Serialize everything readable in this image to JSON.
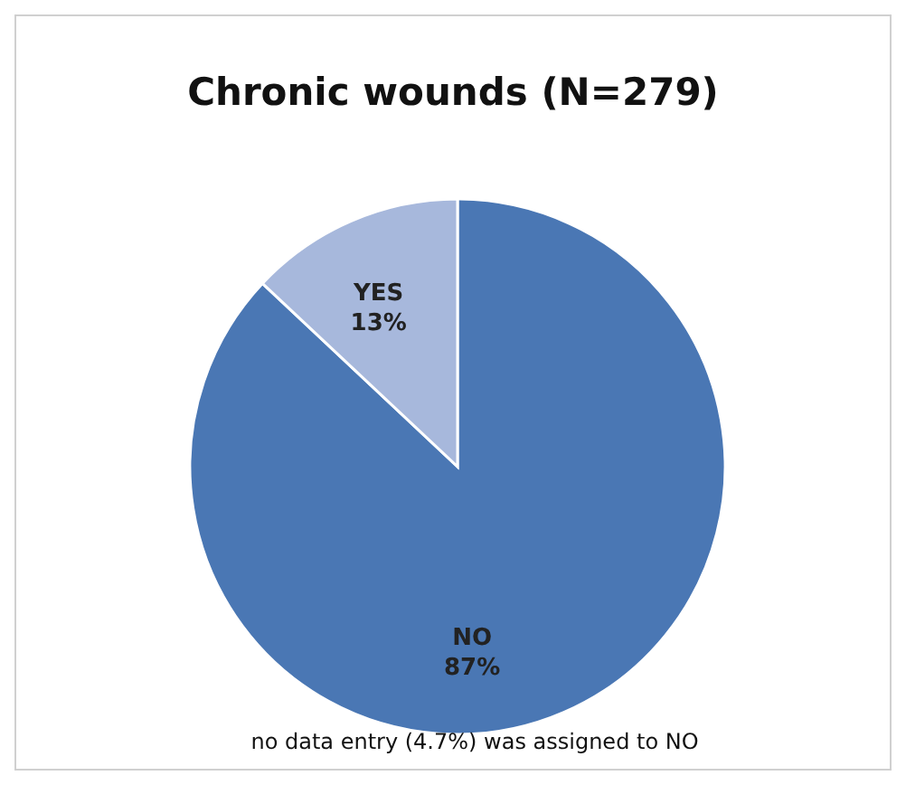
{
  "chart_data": {
    "type": "pie",
    "title": "Chronic wounds (N=279)",
    "categories": [
      "NO",
      "YES"
    ],
    "values": [
      87,
      13
    ],
    "colors": [
      "#4a77b4",
      "#a7b8dc"
    ],
    "value_labels": [
      "87%",
      "13%"
    ],
    "annotations": [
      "no data entry (4.7%) was assigned to NO"
    ]
  }
}
